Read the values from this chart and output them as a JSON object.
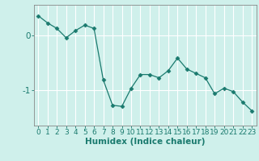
{
  "x": [
    0,
    1,
    2,
    3,
    4,
    5,
    6,
    7,
    8,
    9,
    10,
    11,
    12,
    13,
    14,
    15,
    16,
    17,
    18,
    19,
    20,
    21,
    22,
    23
  ],
  "y": [
    0.35,
    0.22,
    0.12,
    -0.05,
    0.08,
    0.18,
    0.12,
    -0.82,
    -1.28,
    -1.3,
    -0.97,
    -0.72,
    -0.72,
    -0.78,
    -0.65,
    -0.42,
    -0.62,
    -0.7,
    -0.78,
    -1.07,
    -0.97,
    -1.03,
    -1.22,
    -1.38
  ],
  "line_color": "#1a7a6e",
  "marker": "D",
  "marker_size": 2.5,
  "bg_color": "#cff0eb",
  "grid_color": "#ffffff",
  "xlabel": "Humidex (Indice chaleur)",
  "yticks": [
    0,
    -1
  ],
  "ytick_labels": [
    "0",
    "-1"
  ],
  "xlim": [
    -0.5,
    23.5
  ],
  "ylim": [
    -1.65,
    0.55
  ],
  "xlabel_fontsize": 7.5,
  "tick_fontsize": 6.5,
  "label_color": "#1a7a6e",
  "spine_color": "#888888",
  "grid_alpha": 1.0
}
